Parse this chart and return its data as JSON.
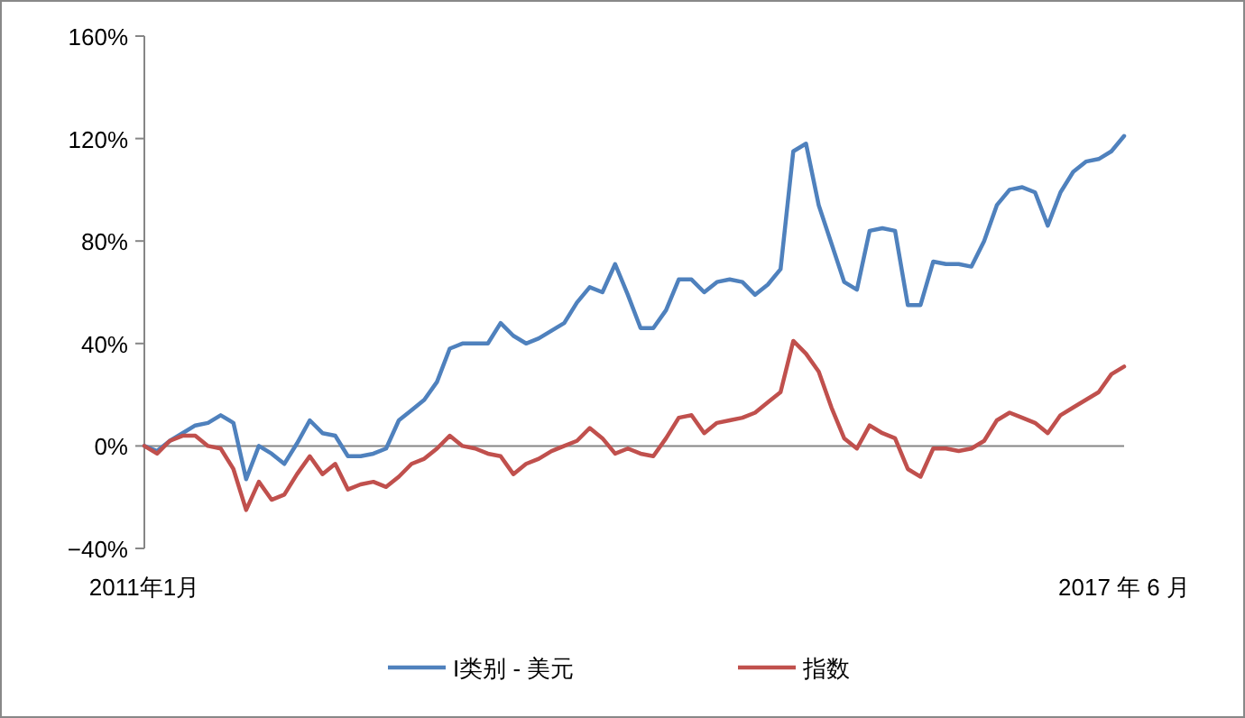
{
  "chart_data": {
    "type": "line",
    "categories": [
      "2011年1月",
      null,
      null,
      null,
      null,
      null,
      null,
      null,
      null,
      null,
      null,
      null,
      null,
      null,
      null,
      null,
      null,
      null,
      null,
      null,
      null,
      null,
      null,
      null,
      null,
      null,
      null,
      null,
      null,
      null,
      null,
      null,
      null,
      null,
      null,
      null,
      null,
      null,
      null,
      null,
      null,
      null,
      null,
      null,
      null,
      null,
      null,
      null,
      null,
      null,
      null,
      null,
      null,
      null,
      null,
      null,
      null,
      null,
      null,
      null,
      null,
      null,
      null,
      null,
      null,
      null,
      null,
      null,
      null,
      null,
      null,
      null,
      null,
      null,
      null,
      null,
      null,
      "2017 年 6 月"
    ],
    "series": [
      {
        "name": "I类别 - 美元",
        "color": "#4f81bd",
        "values": [
          0,
          -2,
          2,
          5,
          8,
          9,
          12,
          9,
          -13,
          0,
          -3,
          -7,
          1,
          10,
          5,
          4,
          -4,
          -4,
          -3,
          -1,
          10,
          14,
          18,
          25,
          38,
          40,
          40,
          40,
          48,
          43,
          40,
          42,
          45,
          48,
          56,
          62,
          60,
          71,
          59,
          46,
          46,
          53,
          65,
          65,
          60,
          64,
          65,
          64,
          59,
          63,
          69,
          115,
          118,
          94,
          79,
          64,
          61,
          84,
          85,
          84,
          55,
          55,
          72,
          71,
          71,
          70,
          80,
          94,
          100,
          101,
          99,
          86,
          99,
          107,
          111,
          112,
          115,
          121
        ]
      },
      {
        "name": "指数",
        "color": "#c0504d",
        "values": [
          0,
          -3,
          2,
          4,
          4,
          0,
          -1,
          -9,
          -25,
          -14,
          -21,
          -19,
          -11,
          -4,
          -11,
          -7,
          -17,
          -15,
          -14,
          -16,
          -12,
          -7,
          -5,
          -1,
          4,
          0,
          -1,
          -3,
          -4,
          -11,
          -7,
          -5,
          -2,
          0,
          2,
          7,
          3,
          -3,
          -1,
          -3,
          -4,
          3,
          11,
          12,
          5,
          9,
          10,
          11,
          13,
          17,
          21,
          41,
          36,
          29,
          15,
          3,
          -1,
          8,
          5,
          3,
          -9,
          -12,
          -1,
          -1,
          -2,
          -1,
          2,
          10,
          13,
          11,
          9,
          5,
          12,
          15,
          18,
          21,
          28,
          31
        ]
      }
    ],
    "ylim": [
      -40,
      160
    ],
    "yticks": [
      {
        "value": -40,
        "label": "−40%"
      },
      {
        "value": 0,
        "label": "0%"
      },
      {
        "value": 40,
        "label": "40%"
      },
      {
        "value": 80,
        "label": "80%"
      },
      {
        "value": 120,
        "label": "120%"
      },
      {
        "value": 160,
        "label": "160%"
      }
    ],
    "legend": "bottom"
  }
}
